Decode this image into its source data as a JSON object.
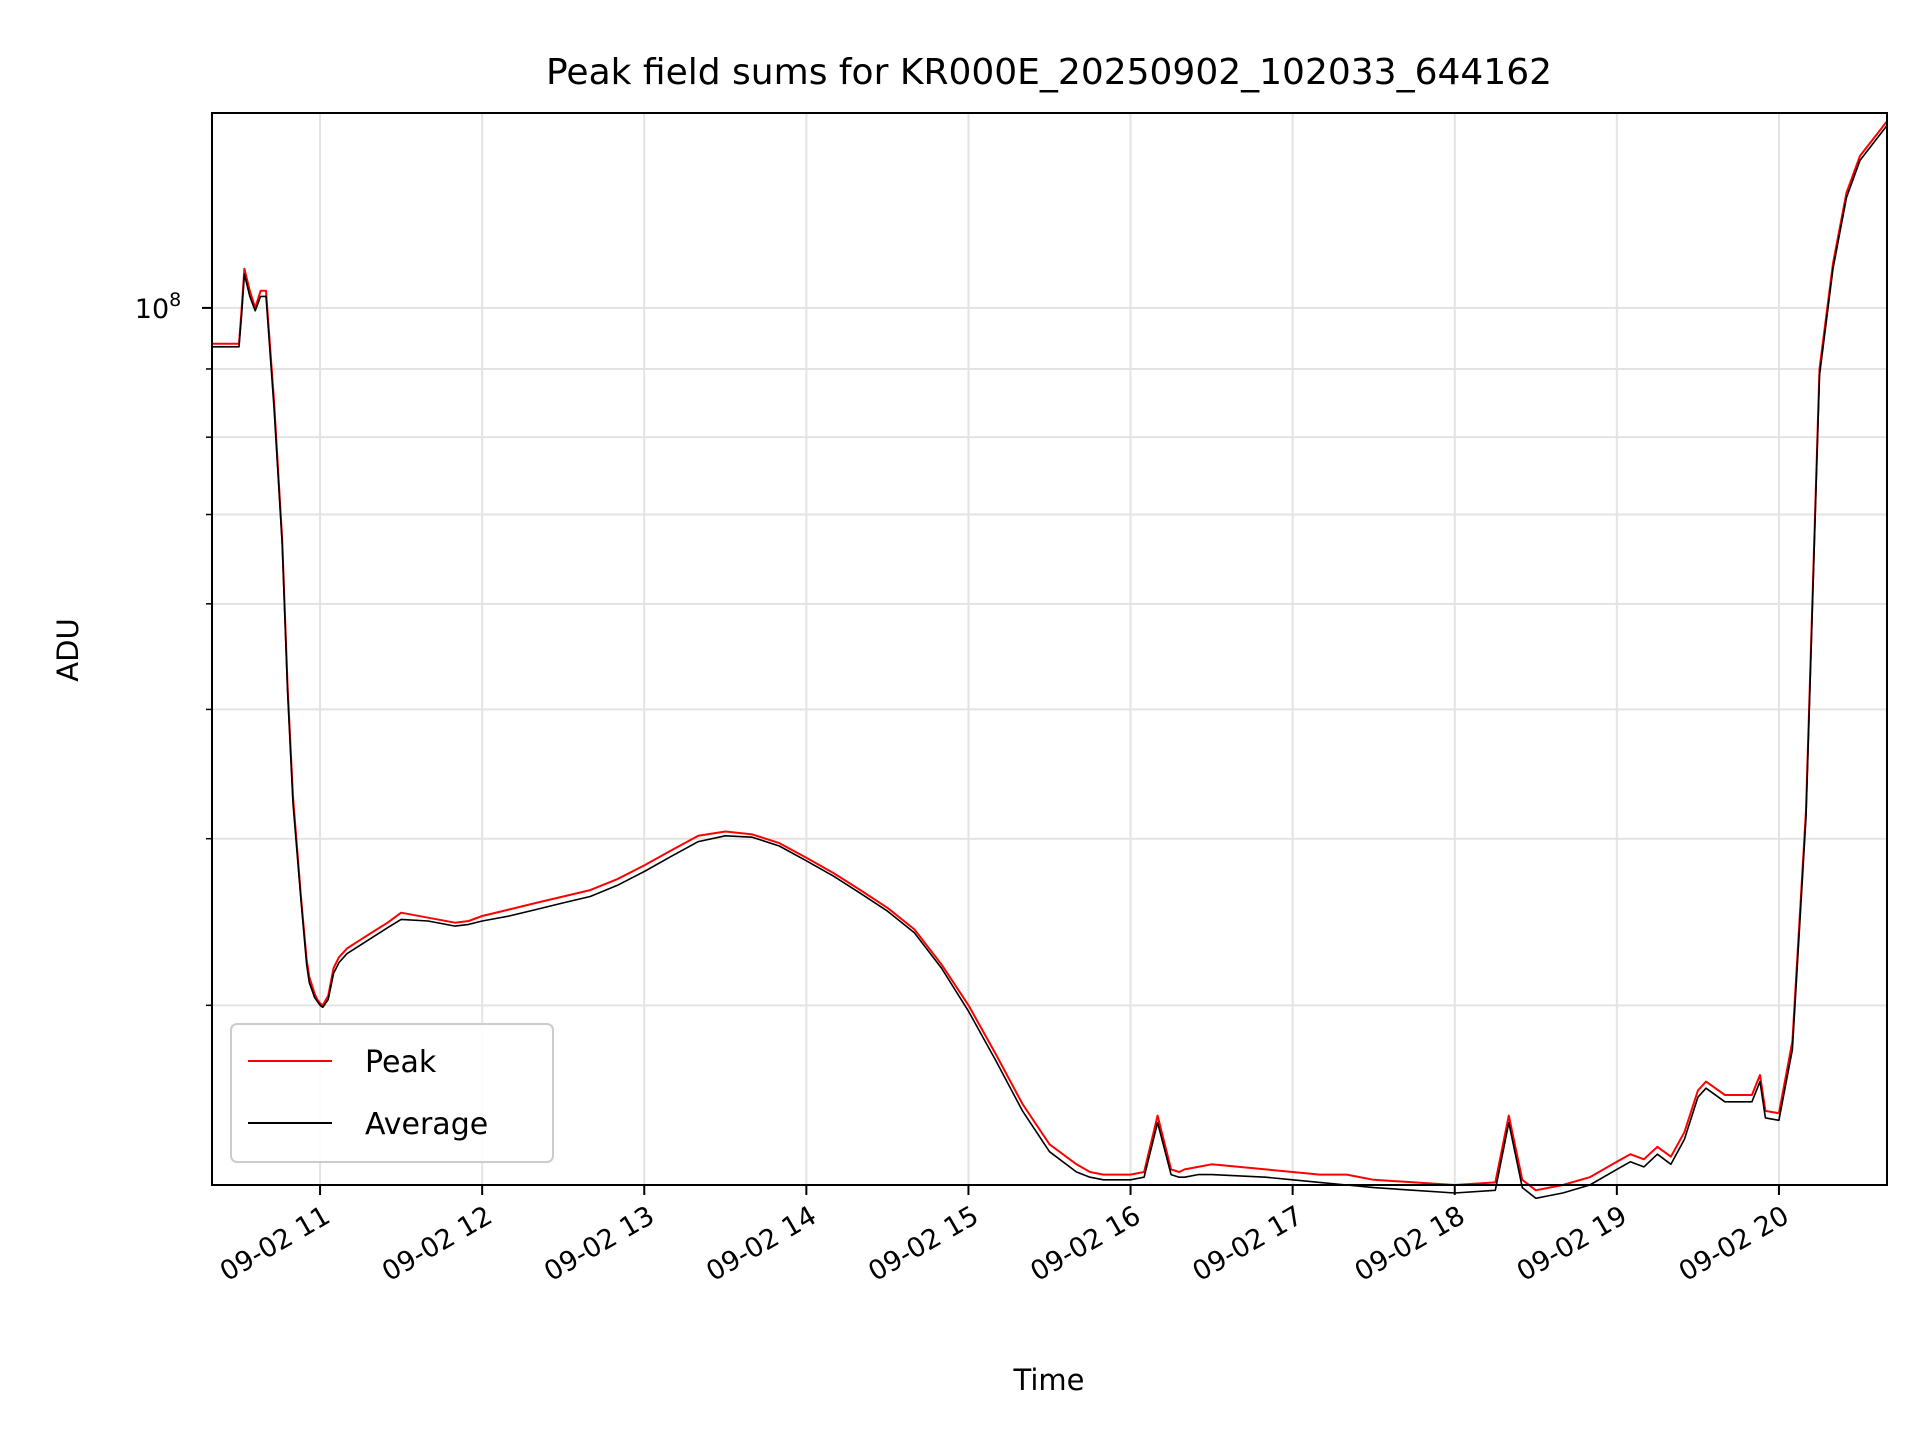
{
  "chart_data": {
    "type": "line",
    "title": "Peak field sums for KR000E_20250902_102033_644162",
    "xlabel": "Time",
    "ylabel": "ADU",
    "yscale": "log",
    "grid": true,
    "legend_position": "lower-left",
    "xlim": [
      "2025-09-02 10:20",
      "2025-09-02 20:40"
    ],
    "ylim": [
      22000000,
      140000000
    ],
    "x_ticks": [
      "09-02 11",
      "09-02 12",
      "09-02 13",
      "09-02 14",
      "09-02 15",
      "09-02 16",
      "09-02 17",
      "09-02 18",
      "09-02 19",
      "09-02 20"
    ],
    "y_tick_labels": [
      {
        "value": 100000000,
        "base": "10",
        "exp": "8"
      }
    ],
    "series": [
      {
        "name": "Peak",
        "color": "#ff0000",
        "x": [
          "10:20",
          "10:28",
          "10:30",
          "10:31",
          "10:32",
          "10:34",
          "10:36",
          "10:38",
          "10:40",
          "10:43",
          "10:46",
          "10:48",
          "10:50",
          "10:53",
          "10:55",
          "10:56",
          "10:58",
          "10:59",
          "11:00",
          "11:01",
          "11:03",
          "11:05",
          "11:07",
          "11:10",
          "11:15",
          "11:20",
          "11:25",
          "11:30",
          "11:40",
          "11:50",
          "11:55",
          "12:00",
          "12:10",
          "12:20",
          "12:30",
          "12:40",
          "12:50",
          "13:00",
          "13:10",
          "13:20",
          "13:30",
          "13:40",
          "13:50",
          "14:00",
          "14:10",
          "14:20",
          "14:30",
          "14:40",
          "14:50",
          "15:00",
          "15:10",
          "15:20",
          "15:30",
          "15:40",
          "15:45",
          "15:50",
          "16:00",
          "16:05",
          "16:10",
          "16:15",
          "16:18",
          "16:20",
          "16:25",
          "16:30",
          "16:50",
          "17:00",
          "17:10",
          "17:20",
          "17:30",
          "17:45",
          "18:00",
          "18:15",
          "18:20",
          "18:25",
          "18:30",
          "18:35",
          "18:40",
          "18:50",
          "19:00",
          "19:05",
          "19:10",
          "19:15",
          "19:20",
          "19:25",
          "19:30",
          "19:33",
          "19:40",
          "19:50",
          "19:53",
          "19:55",
          "20:00",
          "20:05",
          "20:10",
          "20:15",
          "20:20",
          "20:25",
          "20:30",
          "20:40"
        ],
        "y": [
          94000000,
          94000000,
          94000000,
          100000000,
          107000000,
          103000000,
          100000000,
          103000000,
          103000000,
          85000000,
          67000000,
          52000000,
          43000000,
          36000000,
          32500000,
          31500000,
          30600000,
          30300000,
          30100000,
          30000000,
          30500000,
          32000000,
          32600000,
          33100000,
          33600000,
          34100000,
          34600000,
          35200000,
          34900000,
          34600000,
          34700000,
          35000000,
          35400000,
          35800000,
          36200000,
          36600000,
          37300000,
          38200000,
          39200000,
          40200000,
          40500000,
          40300000,
          39700000,
          38700000,
          37700000,
          36600000,
          35500000,
          34200000,
          32200000,
          30000000,
          27600000,
          25300000,
          23600000,
          22800000,
          22500000,
          22400000,
          22400000,
          22500000,
          24800000,
          22600000,
          22500000,
          22600000,
          22700000,
          22800000,
          22600000,
          22500000,
          22400000,
          22400000,
          22200000,
          22100000,
          22000000,
          22100000,
          24800000,
          22200000,
          21800000,
          21900000,
          22000000,
          22300000,
          22900000,
          23200000,
          23000000,
          23500000,
          23100000,
          24100000,
          25900000,
          26300000,
          25700000,
          25700000,
          26600000,
          25000000,
          24900000,
          28200000,
          42000000,
          90000000,
          108000000,
          122000000,
          130000000,
          138000000
        ]
      },
      {
        "name": "Average",
        "color": "#000000",
        "x": [
          "10:20",
          "10:28",
          "10:30",
          "10:31",
          "10:32",
          "10:34",
          "10:36",
          "10:38",
          "10:40",
          "10:43",
          "10:46",
          "10:48",
          "10:50",
          "10:53",
          "10:55",
          "10:56",
          "10:58",
          "10:59",
          "11:00",
          "11:01",
          "11:03",
          "11:05",
          "11:07",
          "11:10",
          "11:15",
          "11:20",
          "11:25",
          "11:30",
          "11:40",
          "11:50",
          "11:55",
          "12:00",
          "12:10",
          "12:20",
          "12:30",
          "12:40",
          "12:50",
          "13:00",
          "13:10",
          "13:20",
          "13:30",
          "13:40",
          "13:50",
          "14:00",
          "14:10",
          "14:20",
          "14:30",
          "14:40",
          "14:50",
          "15:00",
          "15:10",
          "15:20",
          "15:30",
          "15:40",
          "15:45",
          "15:50",
          "16:00",
          "16:05",
          "16:10",
          "16:15",
          "16:18",
          "16:20",
          "16:25",
          "16:30",
          "16:50",
          "17:00",
          "17:10",
          "17:20",
          "17:30",
          "17:45",
          "18:00",
          "18:15",
          "18:20",
          "18:25",
          "18:30",
          "18:35",
          "18:40",
          "18:50",
          "19:00",
          "19:05",
          "19:10",
          "19:15",
          "19:20",
          "19:25",
          "19:30",
          "19:33",
          "19:40",
          "19:50",
          "19:53",
          "19:55",
          "20:00",
          "20:05",
          "20:10",
          "20:15",
          "20:20",
          "20:25",
          "20:30",
          "20:40"
        ],
        "y": [
          93500000,
          93500000,
          93500000,
          99000000,
          106000000,
          102000000,
          99500000,
          102000000,
          102000000,
          84000000,
          66500000,
          51500000,
          42500000,
          35800000,
          32200000,
          31200000,
          30400000,
          30200000,
          30000000,
          29900000,
          30300000,
          31700000,
          32300000,
          32800000,
          33300000,
          33800000,
          34300000,
          34800000,
          34700000,
          34400000,
          34500000,
          34700000,
          35000000,
          35400000,
          35800000,
          36200000,
          36900000,
          37800000,
          38800000,
          39800000,
          40200000,
          40100000,
          39500000,
          38500000,
          37500000,
          36400000,
          35300000,
          34000000,
          32000000,
          29700000,
          27300000,
          25000000,
          23300000,
          22500000,
          22300000,
          22200000,
          22200000,
          22300000,
          24500000,
          22400000,
          22300000,
          22300000,
          22400000,
          22400000,
          22300000,
          22200000,
          22100000,
          22000000,
          21900000,
          21800000,
          21700000,
          21800000,
          24500000,
          21900000,
          21500000,
          21600000,
          21700000,
          22000000,
          22600000,
          22900000,
          22700000,
          23200000,
          22800000,
          23800000,
          25600000,
          26000000,
          25400000,
          25400000,
          26300000,
          24700000,
          24600000,
          27800000,
          41500000,
          89000000,
          107000000,
          121000000,
          129000000,
          137000000
        ]
      }
    ]
  }
}
